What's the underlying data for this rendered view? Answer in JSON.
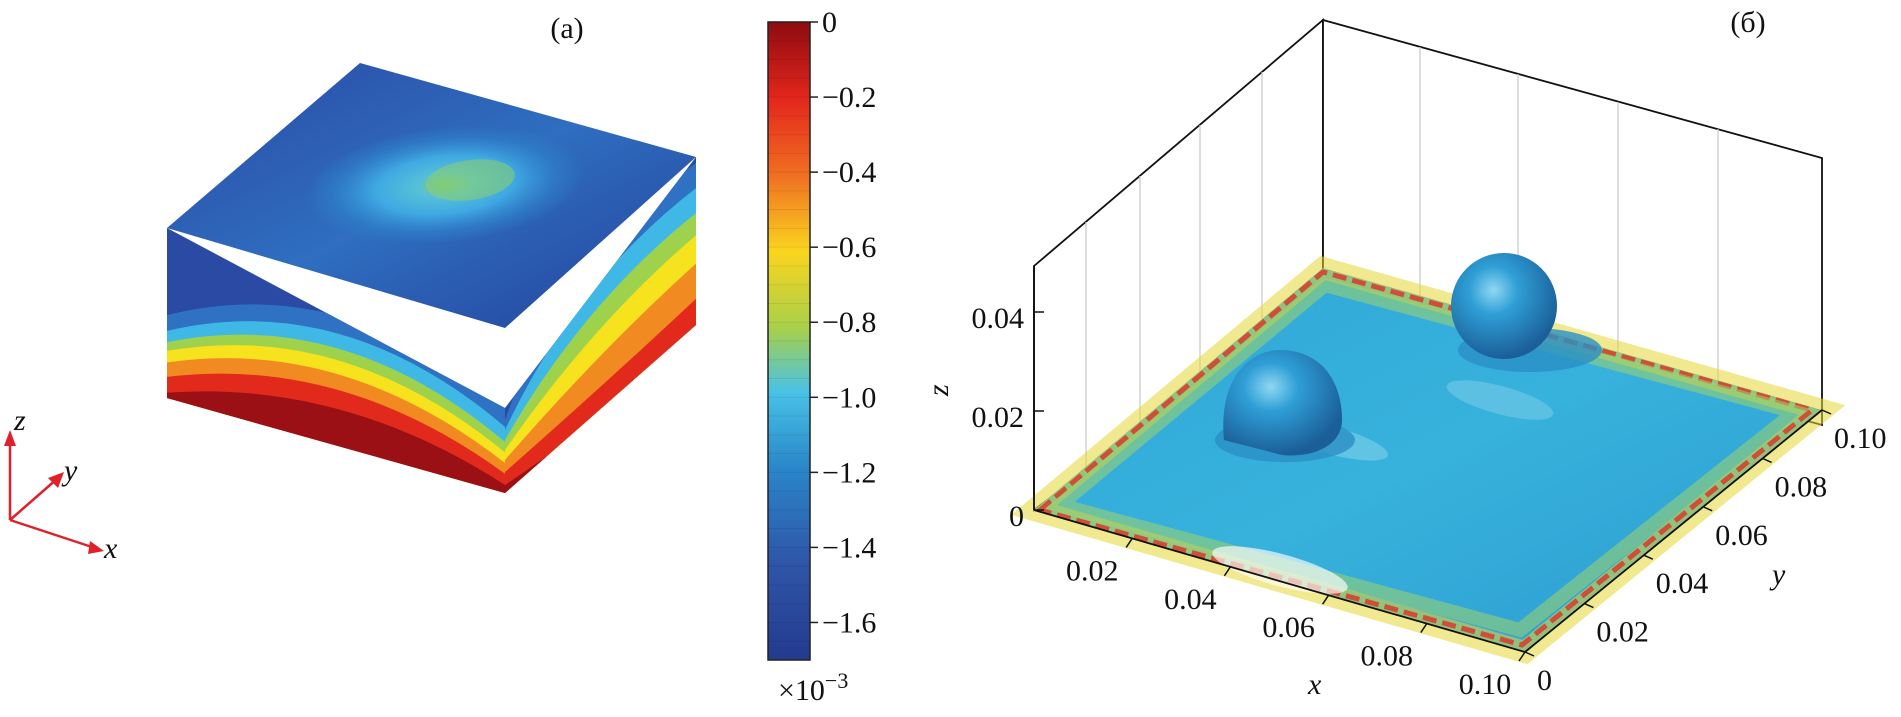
{
  "panel_a": {
    "label": "(a)",
    "axes": {
      "x": "x",
      "y": "y",
      "z": "z"
    }
  },
  "colorbar": {
    "ticks": [
      "0",
      "−0.2",
      "−0.4",
      "−0.6",
      "−0.8",
      "−1.0",
      "−1.2",
      "−1.4",
      "−1.6"
    ],
    "multiplier_base": "×10",
    "multiplier_exp": "−3",
    "colors": [
      "#9e0f12",
      "#e3261c",
      "#f06f22",
      "#fad51f",
      "#a8d04a",
      "#48c2e6",
      "#2a86c9",
      "#2f55a8",
      "#223a8e"
    ]
  },
  "panel_b": {
    "label": "(б)",
    "x_axis": {
      "label": "x",
      "ticks": [
        "0.02",
        "0.04",
        "0.06",
        "0.08",
        "0.10"
      ]
    },
    "y_axis": {
      "label": "y",
      "ticks": [
        "0",
        "0.02",
        "0.04",
        "0.06",
        "0.08",
        "0.10"
      ]
    },
    "z_axis": {
      "label": "z",
      "ticks": [
        "0",
        "0.02",
        "0.04"
      ]
    }
  }
}
